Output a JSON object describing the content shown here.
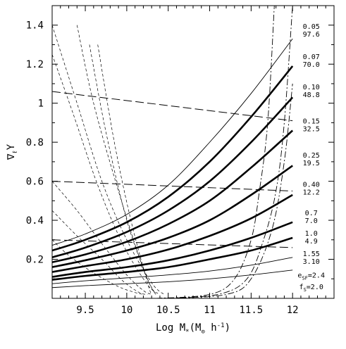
{
  "chart_data": {
    "type": "line",
    "xlabel": "Log M",
    "xlabel_sub": "*",
    "xlabel_units": "(M",
    "xlabel_units_sub": "⊙",
    "xlabel_units_tail": " h",
    "xlabel_units_sup": "-1",
    "xlabel_units_close": ")",
    "ylabel": "∇",
    "ylabel_sub": "ℓ",
    "ylabel_tail": "Υ",
    "xlim": [
      9.1,
      12.5
    ],
    "ylim": [
      0,
      1.5
    ],
    "xticks": [
      {
        "v": 9.5,
        "label": "9.5"
      },
      {
        "v": 10,
        "label": "10"
      },
      {
        "v": 10.5,
        "label": "10.5"
      },
      {
        "v": 11,
        "label": "11"
      },
      {
        "v": 11.5,
        "label": "11.5"
      },
      {
        "v": 12,
        "label": "12"
      }
    ],
    "yticks": [
      {
        "v": 0.2,
        "label": "0.2"
      },
      {
        "v": 0.4,
        "label": "0.4"
      },
      {
        "v": 0.6,
        "label": "0.6"
      },
      {
        "v": 0.8,
        "label": "0.8"
      },
      {
        "v": 1.0,
        "label": "1"
      },
      {
        "v": 1.2,
        "label": "1.2"
      },
      {
        "v": 1.4,
        "label": "1.4"
      }
    ],
    "grid": false,
    "series": [
      {
        "style": "thin",
        "x": [
          9.1,
          9.5,
          10,
          10.5,
          11,
          11.5,
          12
        ],
        "y": [
          0.272,
          0.33,
          0.43,
          0.58,
          0.8,
          1.05,
          1.33
        ]
      },
      {
        "style": "thick",
        "x": [
          9.1,
          9.5,
          10,
          10.5,
          11,
          11.5,
          12
        ],
        "y": [
          0.245,
          0.3,
          0.39,
          0.52,
          0.7,
          0.93,
          1.19
        ]
      },
      {
        "style": "thick",
        "x": [
          9.1,
          9.5,
          10,
          10.5,
          11,
          11.5,
          12
        ],
        "y": [
          0.21,
          0.26,
          0.34,
          0.45,
          0.6,
          0.8,
          1.03
        ]
      },
      {
        "style": "thick",
        "x": [
          9.1,
          9.5,
          10,
          10.5,
          11,
          11.5,
          12
        ],
        "y": [
          0.185,
          0.225,
          0.29,
          0.38,
          0.5,
          0.67,
          0.86
        ]
      },
      {
        "style": "thick",
        "x": [
          9.1,
          9.5,
          10,
          10.5,
          11,
          11.5,
          12
        ],
        "y": [
          0.16,
          0.195,
          0.245,
          0.31,
          0.4,
          0.53,
          0.68
        ]
      },
      {
        "style": "thick",
        "x": [
          9.1,
          9.5,
          10,
          10.5,
          11,
          11.5,
          12
        ],
        "y": [
          0.135,
          0.165,
          0.2,
          0.25,
          0.32,
          0.41,
          0.53
        ]
      },
      {
        "style": "thick",
        "x": [
          9.1,
          9.5,
          10,
          10.5,
          11,
          11.5,
          12
        ],
        "y": [
          0.11,
          0.135,
          0.16,
          0.195,
          0.245,
          0.31,
          0.39
        ]
      },
      {
        "style": "thick",
        "x": [
          9.1,
          9.5,
          10,
          10.5,
          11,
          11.5,
          12
        ],
        "y": [
          0.095,
          0.115,
          0.135,
          0.16,
          0.2,
          0.245,
          0.31
        ]
      },
      {
        "style": "thin",
        "x": [
          9.1,
          9.5,
          10,
          10.5,
          11,
          11.5,
          12
        ],
        "y": [
          0.075,
          0.09,
          0.105,
          0.12,
          0.14,
          0.17,
          0.21
        ]
      },
      {
        "style": "thin",
        "x": [
          9.1,
          9.5,
          10,
          10.5,
          11,
          11.5,
          12
        ],
        "y": [
          0.055,
          0.065,
          0.075,
          0.085,
          0.1,
          0.12,
          0.145
        ]
      },
      {
        "style": "long-dash",
        "x": [
          9.1,
          12
        ],
        "y": [
          1.06,
          0.91
        ]
      },
      {
        "style": "long-dash",
        "x": [
          9.1,
          12
        ],
        "y": [
          0.6,
          0.55
        ]
      },
      {
        "style": "long-dash",
        "x": [
          9.1,
          12
        ],
        "y": [
          0.3,
          0.26
        ]
      },
      {
        "style": "short-dash",
        "x": [
          9.1,
          9.4,
          9.7,
          10.0,
          10.3,
          10.45
        ],
        "y": [
          1.4,
          1.0,
          0.6,
          0.3,
          0.08,
          0.02
        ]
      },
      {
        "style": "short-dash",
        "x": [
          9.1,
          9.35,
          9.65,
          9.95,
          10.25,
          10.4
        ],
        "y": [
          1.25,
          0.95,
          0.58,
          0.28,
          0.07,
          0.02
        ]
      },
      {
        "style": "short-dash",
        "x": [
          9.4,
          9.6,
          9.9,
          10.2,
          10.35
        ],
        "y": [
          1.4,
          1.0,
          0.55,
          0.15,
          0.02
        ]
      },
      {
        "style": "short-dash",
        "x": [
          9.55,
          9.75,
          10.0,
          10.25,
          10.35
        ],
        "y": [
          1.3,
          0.85,
          0.4,
          0.1,
          0.02
        ]
      },
      {
        "style": "short-dash",
        "x": [
          9.65,
          9.85,
          10.05,
          10.25,
          10.3
        ],
        "y": [
          1.3,
          0.8,
          0.4,
          0.08,
          0.02
        ]
      },
      {
        "style": "short-dash",
        "x": [
          9.1,
          9.4,
          9.7,
          10.0,
          10.2,
          10.3
        ],
        "y": [
          0.6,
          0.45,
          0.28,
          0.12,
          0.04,
          0.02
        ]
      },
      {
        "style": "short-dash",
        "x": [
          9.1,
          9.4,
          9.7,
          9.95,
          10.15,
          10.25
        ],
        "y": [
          0.45,
          0.32,
          0.2,
          0.09,
          0.03,
          0.02
        ]
      },
      {
        "style": "short-dash",
        "x": [
          9.1,
          9.3,
          9.6,
          9.9,
          10.1,
          10.2
        ],
        "y": [
          0.3,
          0.22,
          0.13,
          0.06,
          0.03,
          0.02
        ]
      },
      {
        "style": "dash-dot",
        "x": [
          10.35,
          11.0,
          11.3,
          11.5,
          11.6,
          11.7,
          11.78
        ],
        "y": [
          0.0,
          0.02,
          0.1,
          0.3,
          0.55,
          0.9,
          1.5
        ]
      },
      {
        "style": "dash-dot",
        "x": [
          10.45,
          11.1,
          11.45,
          11.65,
          11.8,
          11.9,
          12.0
        ],
        "y": [
          0.0,
          0.02,
          0.1,
          0.3,
          0.55,
          0.9,
          1.5
        ]
      },
      {
        "style": "dash-dot",
        "x": [
          10.5,
          11.2,
          11.5,
          11.75,
          11.9,
          12.0
        ],
        "y": [
          0.0,
          0.02,
          0.1,
          0.35,
          0.7,
          1.1
        ]
      }
    ],
    "curve_labels": [
      {
        "y": 1.392,
        "text": "0.05"
      },
      {
        "y": 1.352,
        "text": "97.6"
      },
      {
        "y": 1.237,
        "text": "0.07"
      },
      {
        "y": 1.197,
        "text": "70.0"
      },
      {
        "y": 1.082,
        "text": "0.10"
      },
      {
        "y": 1.042,
        "text": "48.8"
      },
      {
        "y": 0.907,
        "text": "0.15"
      },
      {
        "y": 0.867,
        "text": "32.5"
      },
      {
        "y": 0.732,
        "text": "0.25"
      },
      {
        "y": 0.692,
        "text": "19.5"
      },
      {
        "y": 0.582,
        "text": "0.40"
      },
      {
        "y": 0.542,
        "text": "12.2"
      },
      {
        "y": 0.437,
        "text": "0.7"
      },
      {
        "y": 0.397,
        "text": "7.0"
      },
      {
        "y": 0.332,
        "text": "1.0"
      },
      {
        "y": 0.292,
        "text": "4.9"
      },
      {
        "y": 0.227,
        "text": "1.55"
      },
      {
        "y": 0.187,
        "text": "3.10"
      },
      {
        "y": 0.117,
        "text": "e",
        "sub": "SF",
        "tail": "=2.4"
      },
      {
        "y": 0.057,
        "text": "f",
        "sub": "S",
        "tail": "=2.0"
      }
    ]
  }
}
